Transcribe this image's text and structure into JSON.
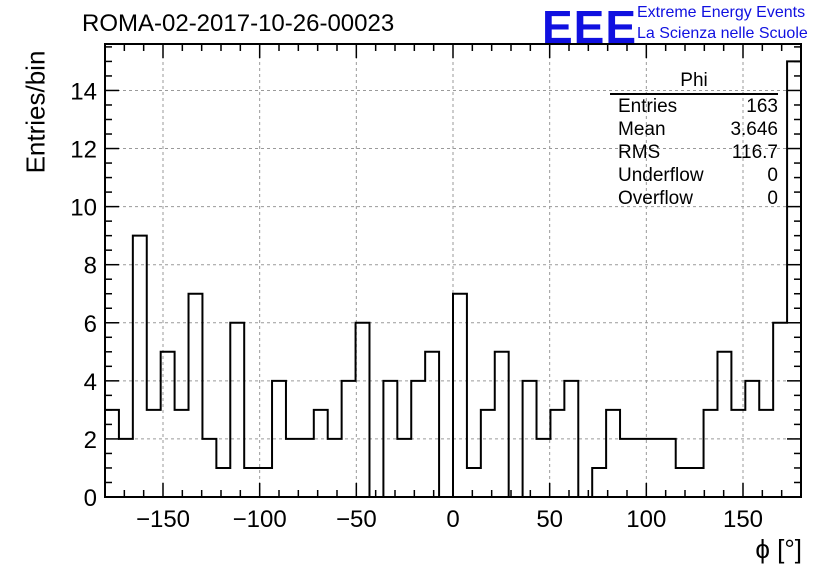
{
  "title": "ROMA-02-2017-10-26-00023",
  "logo": {
    "mark": "EEE",
    "line1": "Extreme Energy Events",
    "line2": "La Scienza nelle Scuole"
  },
  "colors": {
    "logo": "#1010e0",
    "grid": "#9a9a9a",
    "line": "#000000"
  },
  "stats": {
    "title": "Phi",
    "rows": [
      {
        "label": "Entries",
        "value": "163"
      },
      {
        "label": "Mean",
        "value": "3.646"
      },
      {
        "label": "RMS",
        "value": "116.7"
      },
      {
        "label": "Underflow",
        "value": "0"
      },
      {
        "label": "Overflow",
        "value": "0"
      }
    ]
  },
  "chart_data": {
    "type": "histogram",
    "title": "ROMA-02-2017-10-26-00023",
    "xlabel": "ϕ [°]",
    "ylabel": "Entries/bin",
    "xlim": [
      -180,
      180
    ],
    "ylim": [
      0,
      15.6
    ],
    "bin_width": 7.2,
    "bin_edges_start": -180,
    "values": [
      3,
      2,
      9,
      3,
      5,
      3,
      7,
      2,
      1,
      6,
      1,
      1,
      4,
      2,
      2,
      3,
      2,
      4,
      6,
      0,
      4,
      2,
      4,
      5,
      0,
      7,
      1,
      3,
      5,
      0,
      4,
      2,
      3,
      4,
      0,
      1,
      3,
      2,
      2,
      2,
      2,
      1,
      1,
      3,
      5,
      3,
      4,
      3,
      6,
      15
    ],
    "x_ticks": [
      -150,
      -100,
      -50,
      0,
      50,
      100,
      150
    ],
    "x_tick_labels": [
      "−150",
      "−100",
      "−50",
      "0",
      "50",
      "100",
      "150"
    ],
    "y_ticks": [
      0,
      2,
      4,
      6,
      8,
      10,
      12,
      14
    ],
    "grid": true
  }
}
